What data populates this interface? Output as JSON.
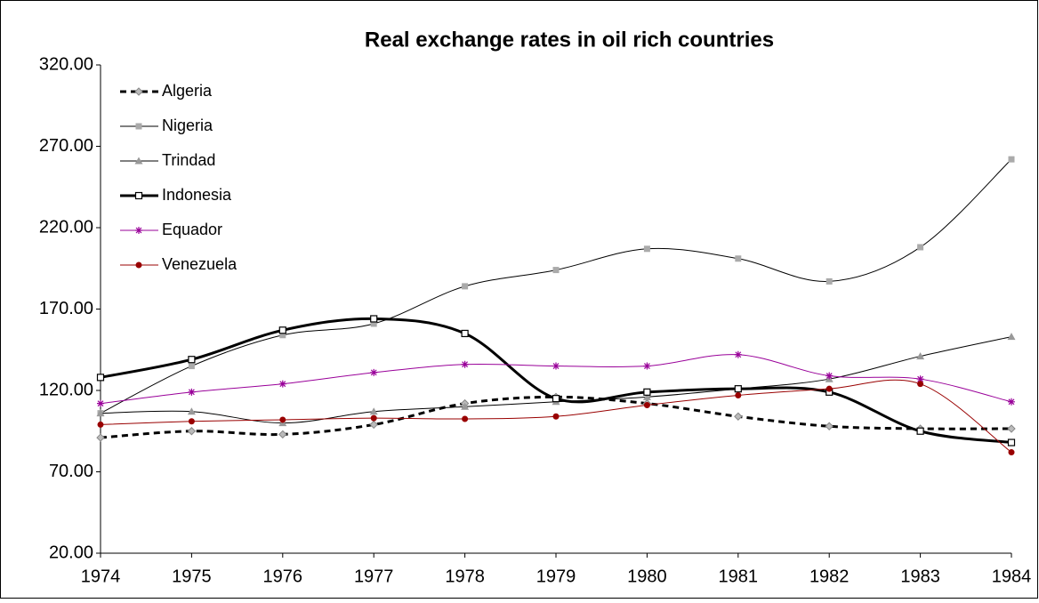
{
  "chart_data": {
    "type": "line",
    "title": "Real exchange rates in oil rich countries",
    "categories": [
      "1974",
      "1975",
      "1976",
      "1977",
      "1978",
      "1979",
      "1980",
      "1981",
      "1982",
      "1983",
      "1984"
    ],
    "ylim": [
      20,
      320
    ],
    "yticks": [
      {
        "value": 20,
        "label": "20.00"
      },
      {
        "value": 70,
        "label": "70.00"
      },
      {
        "value": 120,
        "label": "120.00"
      },
      {
        "value": 170,
        "label": "170.00"
      },
      {
        "value": 220,
        "label": "220.00"
      },
      {
        "value": 270,
        "label": "270.00"
      },
      {
        "value": 320,
        "label": "320.00"
      }
    ],
    "series": [
      {
        "name": "Algeria",
        "color": "#000000",
        "values": [
          91,
          95,
          93,
          99,
          112,
          116,
          112,
          104,
          98,
          96.5,
          96.5
        ]
      },
      {
        "name": "Nigeria",
        "color": "#000000",
        "values": [
          106,
          135,
          154,
          161,
          184,
          194,
          207,
          201,
          187,
          208,
          262
        ]
      },
      {
        "name": "Trindad",
        "color": "#000000",
        "values": [
          106,
          107,
          100,
          107,
          110,
          113,
          116,
          121,
          127,
          141,
          153
        ]
      },
      {
        "name": "Indonesia",
        "color": "#000000",
        "values": [
          128,
          139,
          157,
          164,
          155,
          115,
          119,
          121,
          119,
          95,
          88
        ]
      },
      {
        "name": "Equador",
        "color": "#990099",
        "values": [
          112,
          119,
          124,
          131,
          136,
          135,
          135,
          142,
          129,
          127,
          113
        ]
      },
      {
        "name": "Venezuela",
        "color": "#990000",
        "values": [
          99,
          101,
          102,
          103,
          102.5,
          104,
          111,
          117,
          121,
          124,
          82
        ]
      }
    ]
  }
}
